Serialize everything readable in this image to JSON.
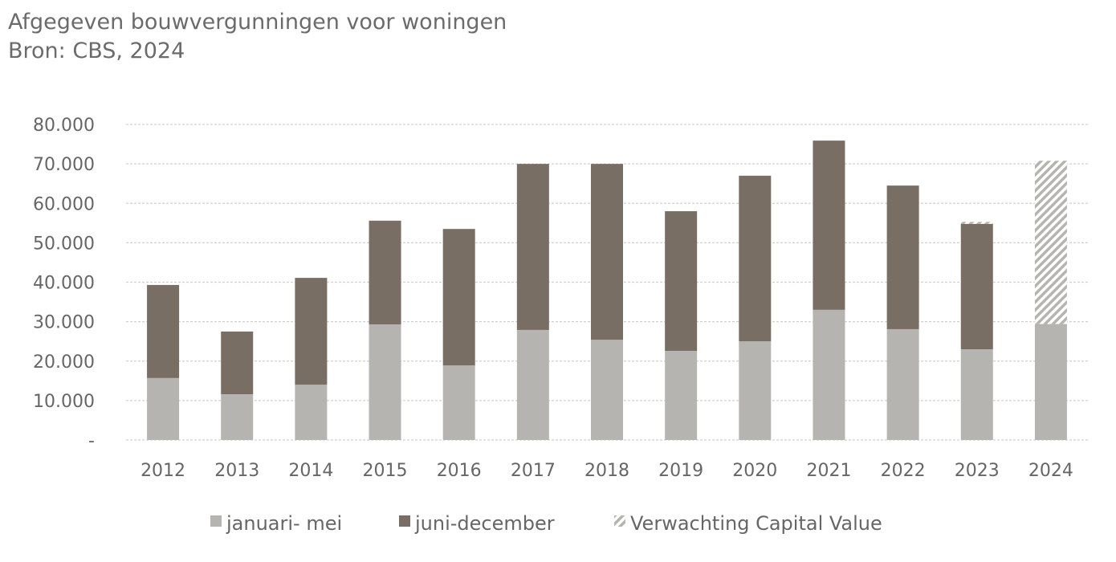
{
  "title": "Afgegeven bouwvergunningen voor woningen",
  "subtitle": "Bron: CBS, 2024",
  "colors": {
    "jan_mei": "#b6b4b0",
    "jun_dec": "#786e63",
    "verwachting": "#b6b4b0",
    "grid": "#d0d0d0"
  },
  "chart_data": {
    "type": "bar",
    "stacked": true,
    "title": "Afgegeven bouwvergunningen voor woningen",
    "subtitle": "Bron: CBS, 2024",
    "categories": [
      "2012",
      "2013",
      "2014",
      "2015",
      "2016",
      "2017",
      "2018",
      "2019",
      "2020",
      "2021",
      "2022",
      "2023",
      "2024"
    ],
    "series": [
      {
        "name": "januari- mei",
        "values": [
          15700,
          11600,
          14000,
          29300,
          18900,
          27900,
          25400,
          22600,
          25000,
          33000,
          28100,
          23000,
          29400
        ]
      },
      {
        "name": "juni-december",
        "values": [
          23600,
          15900,
          27100,
          26300,
          34600,
          42100,
          44600,
          35400,
          42000,
          42900,
          36400,
          31800,
          null
        ]
      },
      {
        "name": "Verwachting Capital Value",
        "values": [
          null,
          null,
          null,
          null,
          null,
          null,
          null,
          null,
          null,
          null,
          null,
          500,
          41400
        ]
      }
    ],
    "ylim": [
      0,
      80000
    ],
    "yticks": [
      "-",
      "10.000",
      "20.000",
      "30.000",
      "40.000",
      "50.000",
      "60.000",
      "70.000",
      "80.000"
    ],
    "grid": true,
    "legend": "bottom"
  }
}
